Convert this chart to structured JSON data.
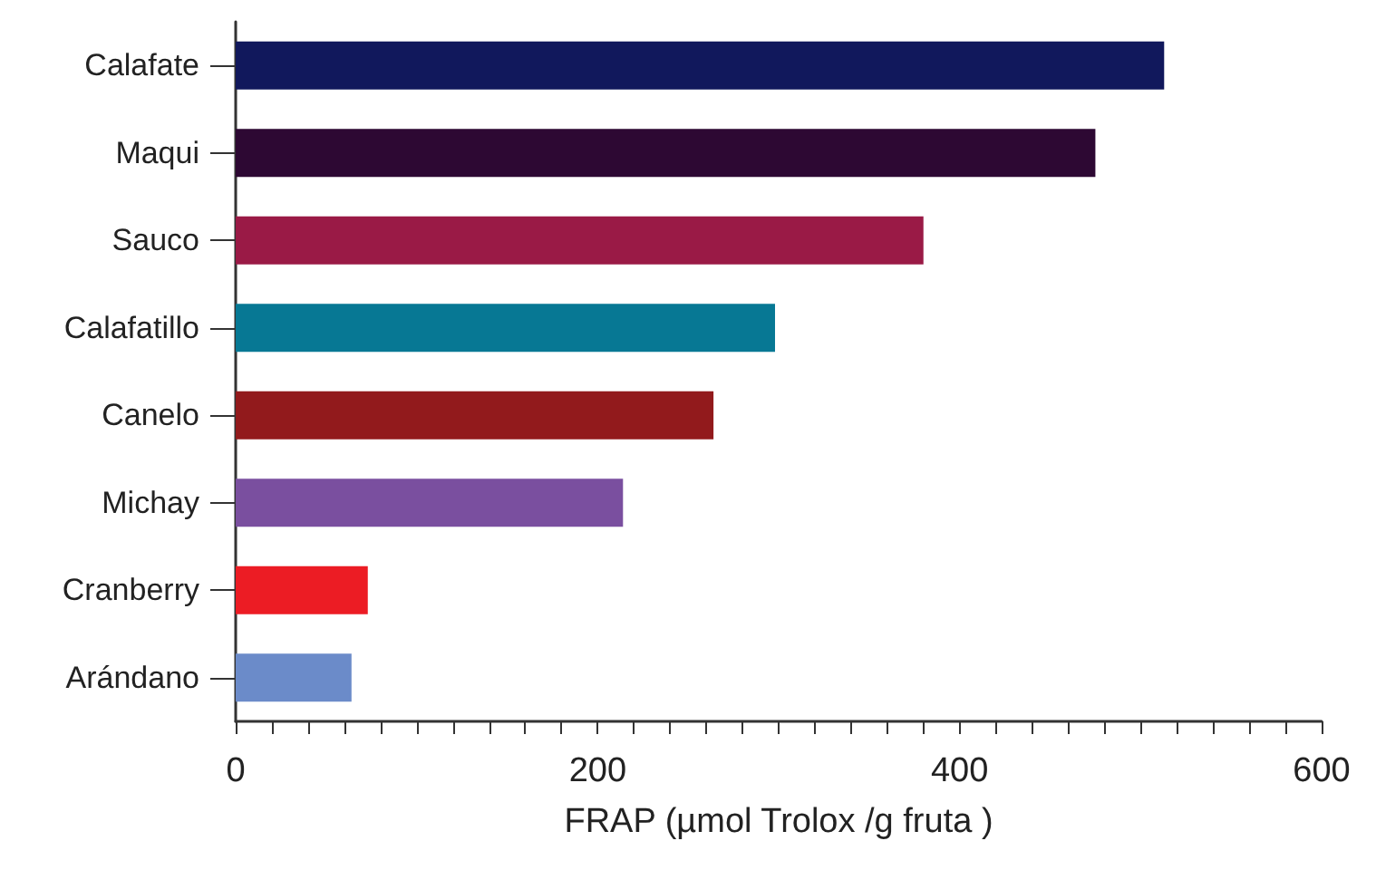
{
  "chart_data": {
    "type": "bar",
    "orientation": "horizontal",
    "xlabel": "FRAP (µmol Trolox /g fruta )",
    "categories": [
      "Calafate",
      "Maqui",
      "Sauco",
      "Calafatillo",
      "Canelo",
      "Michay",
      "Cranberry",
      "Arándano"
    ],
    "values": [
      513,
      475,
      380,
      298,
      264,
      214,
      73,
      64
    ],
    "colors": [
      "#11185c",
      "#2d0833",
      "#9a1a46",
      "#077894",
      "#921a1c",
      "#7a4f9f",
      "#ec1c24",
      "#6b8bc9"
    ],
    "xlim": [
      0,
      600
    ],
    "xticks": [
      0,
      {
        "value": 20,
        "label": null
      },
      {
        "value": 40,
        "label": null
      },
      {
        "value": 60,
        "label": null
      },
      {
        "value": 80,
        "label": null
      },
      {
        "value": 100,
        "label": null
      },
      {
        "value": 120,
        "label": null
      },
      {
        "value": 140,
        "label": null
      },
      {
        "value": 160,
        "label": null
      },
      {
        "value": 180,
        "label": null
      },
      200,
      {
        "value": 220,
        "label": null
      },
      {
        "value": 240,
        "label": null
      },
      {
        "value": 260,
        "label": null
      },
      {
        "value": 280,
        "label": null
      },
      {
        "value": 300,
        "label": null
      },
      {
        "value": 320,
        "label": null
      },
      {
        "value": 340,
        "label": null
      },
      {
        "value": 360,
        "label": null
      },
      {
        "value": 380,
        "label": null
      },
      400,
      {
        "value": 420,
        "label": null
      },
      {
        "value": 440,
        "label": null
      },
      {
        "value": 460,
        "label": null
      },
      {
        "value": 480,
        "label": null
      },
      {
        "value": 500,
        "label": null
      },
      {
        "value": 520,
        "label": null
      },
      {
        "value": 540,
        "label": null
      },
      {
        "value": 560,
        "label": null
      },
      {
        "value": 580,
        "label": null
      },
      600
    ],
    "grid": false
  }
}
